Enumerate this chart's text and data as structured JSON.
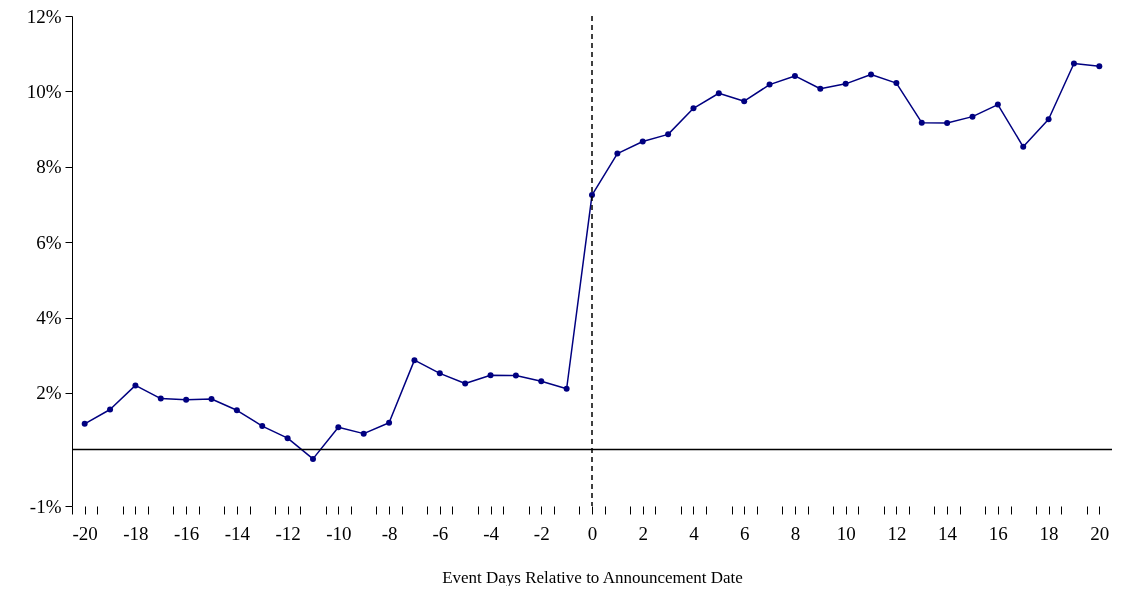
{
  "chart_data": {
    "type": "line",
    "xlabel": "Event Days Relative to Announcement Date",
    "x": [
      -20,
      -19,
      -18,
      -17,
      -16,
      -15,
      -14,
      -13,
      -12,
      -11,
      -10,
      -9,
      -8,
      -7,
      -6,
      -5,
      -4,
      -3,
      -2,
      -1,
      0,
      1,
      2,
      3,
      4,
      5,
      6,
      7,
      8,
      9,
      10,
      11,
      12,
      13,
      14,
      15,
      16,
      17,
      18,
      19,
      20
    ],
    "series": [
      {
        "color": "#000080",
        "values": [
          1.18,
          1.56,
          2.2,
          1.85,
          1.82,
          1.84,
          1.54,
          1.12,
          0.8,
          0.25,
          1.09,
          0.92,
          1.21,
          2.87,
          2.52,
          2.25,
          2.47,
          2.46,
          2.31,
          2.11,
          7.25,
          8.35,
          8.67,
          8.86,
          9.55,
          9.95,
          9.74,
          10.18,
          10.41,
          10.07,
          10.2,
          10.45,
          10.22,
          9.17,
          9.16,
          9.33,
          9.65,
          8.53,
          9.26,
          10.74,
          10.67
        ]
      }
    ],
    "marker": "circle",
    "line_style": "solid",
    "xlim": [
      -20.5,
      20.5
    ],
    "xticks": [
      {
        "value": -20,
        "label": "-20"
      },
      {
        "value": -18,
        "label": "-18"
      },
      {
        "value": -16,
        "label": "-16"
      },
      {
        "value": -14,
        "label": "-14"
      },
      {
        "value": -12,
        "label": "-12"
      },
      {
        "value": -10,
        "label": "-10"
      },
      {
        "value": -8,
        "label": "-8"
      },
      {
        "value": -6,
        "label": "-6"
      },
      {
        "value": -4,
        "label": "-4"
      },
      {
        "value": -2,
        "label": "-2"
      },
      0,
      2,
      4,
      6,
      8,
      10,
      12,
      14,
      16,
      18,
      20,
      {
        "value": -20.5,
        "label": null
      },
      {
        "value": -19.5,
        "label": null
      },
      {
        "value": -18.5,
        "label": null
      },
      {
        "value": -17.5,
        "label": null
      },
      {
        "value": -16.5,
        "label": null
      },
      {
        "value": -15.5,
        "label": null
      },
      {
        "value": -14.5,
        "label": null
      },
      {
        "value": -13.5,
        "label": null
      },
      {
        "value": -12.5,
        "label": null
      },
      {
        "value": -11.5,
        "label": null
      },
      {
        "value": -10.5,
        "label": null
      },
      {
        "value": -9.5,
        "label": null
      },
      {
        "value": -8.5,
        "label": null
      },
      {
        "value": -7.5,
        "label": null
      },
      {
        "value": -6.5,
        "label": null
      },
      {
        "value": -5.5,
        "label": null
      },
      {
        "value": -4.5,
        "label": null
      },
      {
        "value": -3.5,
        "label": null
      },
      {
        "value": -2.5,
        "label": null
      },
      {
        "value": -1.5,
        "label": null
      },
      {
        "value": -0.5,
        "label": null
      },
      {
        "value": 0.5,
        "label": null
      },
      {
        "value": 1.5,
        "label": null
      },
      {
        "value": 2.5,
        "label": null
      },
      {
        "value": 3.5,
        "label": null
      },
      {
        "value": 4.5,
        "label": null
      },
      {
        "value": 5.5,
        "label": null
      },
      {
        "value": 6.5,
        "label": null
      },
      {
        "value": 7.5,
        "label": null
      },
      {
        "value": 8.5,
        "label": null
      },
      {
        "value": 9.5,
        "label": null
      },
      {
        "value": 10.5,
        "label": null
      },
      {
        "value": 11.5,
        "label": null
      },
      {
        "value": 12.5,
        "label": null
      },
      {
        "value": 13.5,
        "label": null
      },
      {
        "value": 14.5,
        "label": null
      },
      {
        "value": 15.5,
        "label": null
      },
      {
        "value": 16.5,
        "label": null
      },
      {
        "value": 17.5,
        "label": null
      },
      {
        "value": 18.5,
        "label": null
      },
      {
        "value": 19.5,
        "label": null
      },
      {
        "value": 20.5,
        "label": null
      }
    ],
    "ylim": [
      -1,
      12
    ],
    "yticks": [
      {
        "value": -1,
        "label": "-1%"
      },
      {
        "value": 2,
        "label": "2%"
      },
      {
        "value": 4,
        "label": "4%"
      },
      {
        "value": 6,
        "label": "6%"
      },
      {
        "value": 8,
        "label": "8%"
      },
      {
        "value": 10,
        "label": "10%"
      },
      {
        "value": 12,
        "label": "12%"
      }
    ],
    "ref_lines": [
      {
        "axis": "x",
        "value": 0,
        "color": "#000000",
        "line_style": "dashed"
      },
      {
        "axis": "y",
        "value": 0.5,
        "color": "#000000",
        "line_style": "solid"
      }
    ],
    "grid": false
  }
}
